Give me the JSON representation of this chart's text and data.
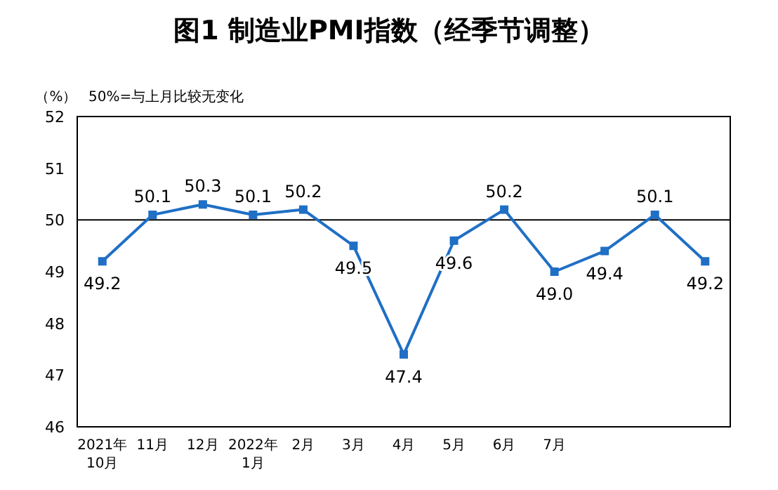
{
  "chart_data": {
    "type": "line",
    "title": "图1 制造业PMI指数（经季节调整）",
    "ylabel": "（%）",
    "annotations": [
      "50%=与上月比较无变化"
    ],
    "categories": [
      "2021年\n10月",
      "11月",
      "12月",
      "2022年\n1月",
      "2月",
      "3月",
      "4月",
      "5月",
      "6月",
      "7月",
      null,
      null,
      null
    ],
    "series": [
      {
        "color": "#1f6fc5",
        "values": [
          49.2,
          50.1,
          50.3,
          50.1,
          50.2,
          49.5,
          47.4,
          49.6,
          50.2,
          49.0,
          49.4,
          50.1,
          49.2
        ],
        "value_labels": [
          "49.2",
          "50.1",
          "50.3",
          "50.1",
          "50.2",
          "49.5",
          "47.4",
          "49.6",
          "50.2",
          "49.0",
          "49.4",
          "50.1",
          "49.2"
        ]
      }
    ],
    "ylim": [
      46,
      52
    ],
    "yticks": [
      46,
      47,
      48,
      49,
      50,
      51,
      52
    ],
    "ref_lines": [
      {
        "axis": "y",
        "value": 50,
        "color": "#000000"
      }
    ],
    "marker": "square",
    "grid": false
  }
}
